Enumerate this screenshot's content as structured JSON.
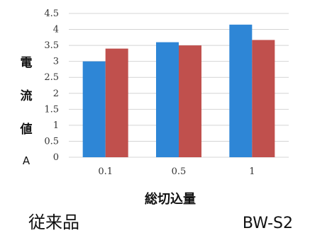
{
  "chart_data": {
    "type": "bar",
    "categories": [
      "0.1",
      "0.5",
      "1"
    ],
    "series": [
      {
        "values": [
          3.0,
          3.6,
          4.15
        ],
        "color": "#2e86d6"
      },
      {
        "values": [
          3.4,
          3.5,
          3.67
        ],
        "color": "#c0504d"
      }
    ],
    "ylabel_chars": [
      "電",
      "流",
      "値"
    ],
    "ylabel_unit": "A",
    "xlabel": "総切込量",
    "ylim": [
      0,
      4.5
    ],
    "yticks": [
      "0",
      "0.5",
      "1",
      "1.5",
      "2",
      "2.5",
      "3",
      "3.5",
      "4",
      "4.5"
    ],
    "grid": true
  },
  "captions": {
    "left": "従来品",
    "right": "BW-S2"
  }
}
